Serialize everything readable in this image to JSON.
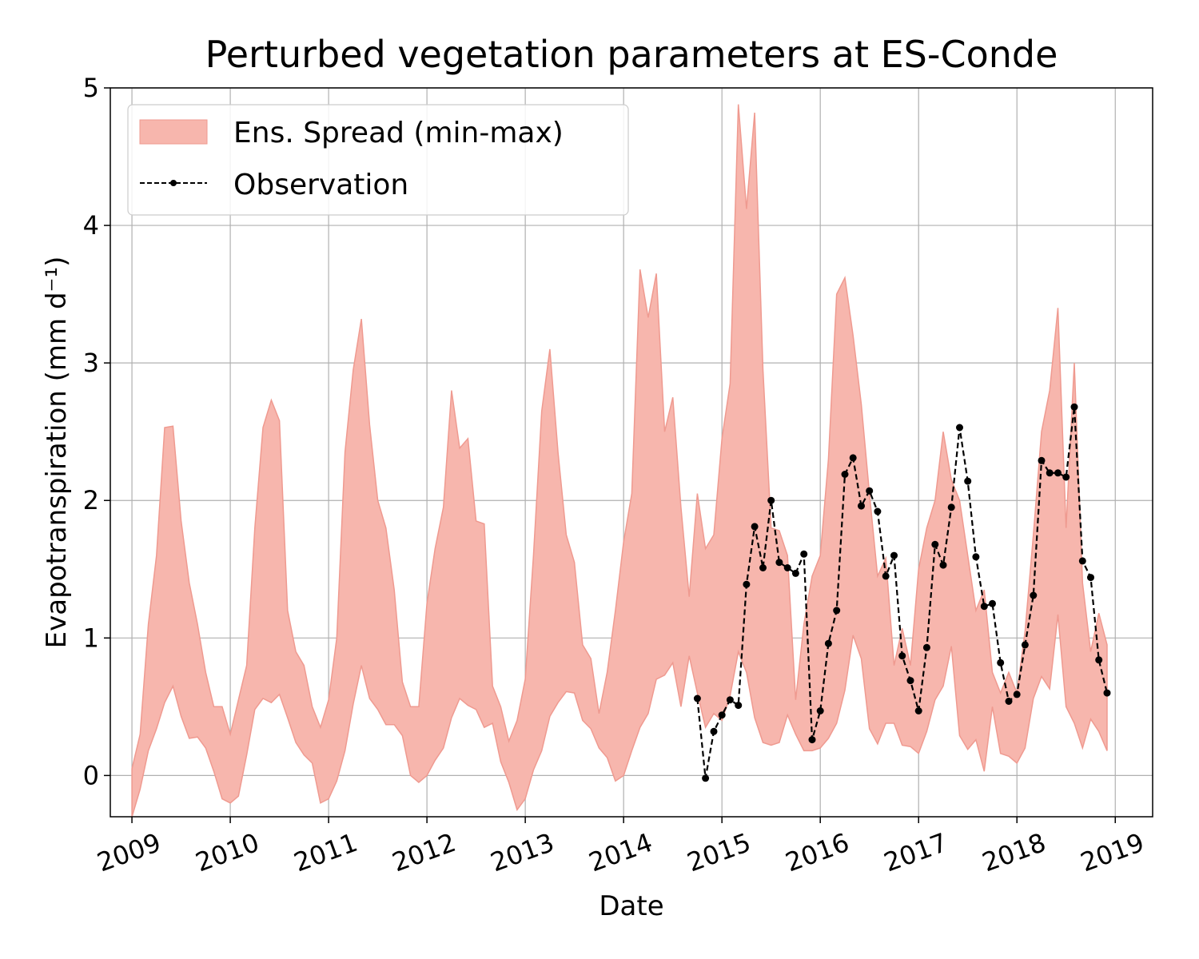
{
  "chart_data": {
    "type": "area",
    "title": "Perturbed vegetation parameters at ES-Conde",
    "xlabel": "Date",
    "ylabel": "Evapotranspiration  (mm d⁻¹)",
    "xlim": [
      2008.78,
      2019.38
    ],
    "ylim": [
      -0.3,
      5.0
    ],
    "x_ticks": [
      "2009",
      "2010",
      "2011",
      "2012",
      "2013",
      "2014",
      "2015",
      "2016",
      "2017",
      "2018",
      "2019"
    ],
    "y_ticks": [
      "0",
      "1",
      "2",
      "3",
      "4",
      "5"
    ],
    "grid": true,
    "legend_position": "top-left",
    "colors": {
      "band_fill": "#f7b6ad",
      "band_edge": "#ef9a90",
      "observation": "#000000"
    },
    "series": [
      {
        "name": "Ens. Spread (min-max)",
        "kind": "band",
        "x": [
          2009.0,
          2009.083,
          2009.167,
          2009.25,
          2009.333,
          2009.417,
          2009.5,
          2009.583,
          2009.667,
          2009.75,
          2009.833,
          2009.917,
          2010.0,
          2010.083,
          2010.167,
          2010.25,
          2010.333,
          2010.417,
          2010.5,
          2010.583,
          2010.667,
          2010.75,
          2010.833,
          2010.917,
          2011.0,
          2011.083,
          2011.167,
          2011.25,
          2011.333,
          2011.417,
          2011.5,
          2011.583,
          2011.667,
          2011.75,
          2011.833,
          2011.917,
          2012.0,
          2012.083,
          2012.167,
          2012.25,
          2012.333,
          2012.417,
          2012.5,
          2012.583,
          2012.667,
          2012.75,
          2012.833,
          2012.917,
          2013.0,
          2013.083,
          2013.167,
          2013.25,
          2013.333,
          2013.417,
          2013.5,
          2013.583,
          2013.667,
          2013.75,
          2013.833,
          2013.917,
          2014.0,
          2014.083,
          2014.167,
          2014.25,
          2014.333,
          2014.417,
          2014.5,
          2014.583,
          2014.667,
          2014.75,
          2014.833,
          2014.917,
          2015.0,
          2015.083,
          2015.167,
          2015.25,
          2015.333,
          2015.417,
          2015.5,
          2015.583,
          2015.667,
          2015.75,
          2015.833,
          2015.917,
          2016.0,
          2016.083,
          2016.167,
          2016.25,
          2016.333,
          2016.417,
          2016.5,
          2016.583,
          2016.667,
          2016.75,
          2016.833,
          2016.917,
          2017.0,
          2017.083,
          2017.167,
          2017.25,
          2017.333,
          2017.417,
          2017.5,
          2017.583,
          2017.667,
          2017.75,
          2017.833,
          2017.917,
          2018.0,
          2018.083,
          2018.167,
          2018.25,
          2018.333,
          2018.417,
          2018.5,
          2018.583,
          2018.667,
          2018.75,
          2018.833,
          2018.917
        ],
        "max": [
          0.05,
          0.3,
          1.1,
          1.6,
          2.53,
          2.54,
          1.85,
          1.4,
          1.1,
          0.75,
          0.5,
          0.5,
          0.3,
          0.55,
          0.8,
          1.8,
          2.53,
          2.73,
          2.58,
          1.2,
          0.9,
          0.8,
          0.5,
          0.35,
          0.55,
          1.0,
          2.35,
          2.95,
          3.32,
          2.55,
          2.0,
          1.8,
          1.35,
          0.68,
          0.5,
          0.5,
          1.25,
          1.65,
          1.95,
          2.8,
          2.38,
          2.45,
          1.85,
          1.83,
          0.65,
          0.5,
          0.25,
          0.4,
          0.7,
          1.6,
          2.65,
          3.1,
          2.35,
          1.75,
          1.55,
          0.95,
          0.85,
          0.45,
          0.75,
          1.2,
          1.7,
          2.05,
          3.68,
          3.33,
          3.65,
          2.5,
          2.75,
          1.95,
          1.3,
          2.05,
          1.65,
          1.75,
          2.45,
          2.85,
          4.88,
          4.12,
          4.82,
          2.95,
          1.8,
          1.78,
          1.6,
          0.55,
          1.1,
          1.45,
          1.6,
          2.3,
          3.5,
          3.62,
          3.2,
          2.7,
          2.05,
          1.45,
          1.58,
          0.8,
          1.07,
          0.8,
          1.5,
          1.8,
          2.0,
          2.5,
          2.15,
          2.0,
          1.6,
          1.2,
          1.35,
          0.75,
          0.6,
          0.75,
          0.6,
          1.05,
          1.75,
          2.5,
          2.8,
          3.4,
          1.8,
          3.0,
          1.4,
          0.9,
          1.18,
          0.95
        ],
        "min": [
          -0.3,
          -0.1,
          0.18,
          0.34,
          0.53,
          0.65,
          0.43,
          0.27,
          0.28,
          0.2,
          0.03,
          -0.17,
          -0.2,
          -0.15,
          0.15,
          0.48,
          0.56,
          0.53,
          0.59,
          0.42,
          0.24,
          0.15,
          0.09,
          -0.2,
          -0.17,
          -0.04,
          0.18,
          0.52,
          0.8,
          0.56,
          0.48,
          0.37,
          0.37,
          0.29,
          0.0,
          -0.05,
          0.0,
          0.11,
          0.2,
          0.42,
          0.56,
          0.51,
          0.48,
          0.35,
          0.38,
          0.1,
          -0.05,
          -0.25,
          -0.17,
          0.04,
          0.18,
          0.43,
          0.53,
          0.61,
          0.6,
          0.4,
          0.34,
          0.2,
          0.13,
          -0.04,
          0.0,
          0.18,
          0.35,
          0.45,
          0.7,
          0.73,
          0.82,
          0.5,
          0.87,
          0.6,
          0.35,
          0.45,
          0.4,
          0.58,
          0.9,
          0.75,
          0.42,
          0.24,
          0.22,
          0.24,
          0.44,
          0.3,
          0.18,
          0.18,
          0.2,
          0.27,
          0.38,
          0.62,
          1.02,
          0.85,
          0.34,
          0.23,
          0.38,
          0.38,
          0.22,
          0.21,
          0.16,
          0.32,
          0.55,
          0.65,
          0.94,
          0.29,
          0.19,
          0.26,
          0.03,
          0.5,
          0.16,
          0.14,
          0.09,
          0.2,
          0.56,
          0.72,
          0.63,
          1.17,
          0.5,
          0.38,
          0.2,
          0.41,
          0.32,
          0.18
        ]
      },
      {
        "name": "Observation",
        "kind": "line-markers",
        "x": [
          2014.75,
          2014.833,
          2014.917,
          2015.0,
          2015.083,
          2015.167,
          2015.25,
          2015.333,
          2015.417,
          2015.5,
          2015.583,
          2015.667,
          2015.75,
          2015.833,
          2015.917,
          2016.0,
          2016.083,
          2016.167,
          2016.25,
          2016.333,
          2016.417,
          2016.5,
          2016.583,
          2016.667,
          2016.75,
          2016.833,
          2016.917,
          2017.0,
          2017.083,
          2017.167,
          2017.25,
          2017.333,
          2017.417,
          2017.5,
          2017.583,
          2017.667,
          2017.75,
          2017.833,
          2017.917,
          2018.0,
          2018.083,
          2018.167,
          2018.25,
          2018.333,
          2018.417,
          2018.5,
          2018.583,
          2018.667,
          2018.75,
          2018.833,
          2018.917
        ],
        "values": [
          0.56,
          -0.02,
          0.32,
          0.44,
          0.55,
          0.51,
          1.39,
          1.81,
          1.51,
          2.0,
          1.55,
          1.51,
          1.47,
          1.61,
          0.26,
          0.47,
          0.96,
          1.2,
          2.19,
          2.31,
          1.96,
          2.07,
          1.92,
          1.45,
          1.6,
          0.87,
          0.69,
          0.47,
          0.93,
          1.68,
          1.53,
          1.95,
          2.53,
          2.14,
          1.59,
          1.23,
          1.25,
          0.82,
          0.54,
          0.59,
          0.95,
          1.31,
          2.29,
          2.2,
          2.2,
          2.17,
          2.68,
          1.56,
          1.44,
          0.84,
          0.6
        ]
      }
    ]
  }
}
